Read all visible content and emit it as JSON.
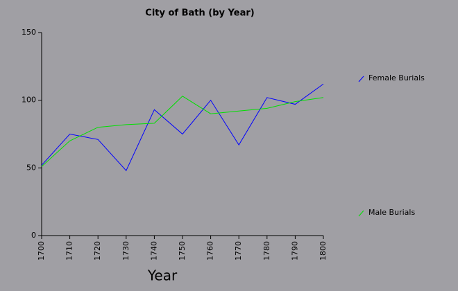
{
  "chart_data": {
    "type": "line",
    "title": "City of Bath (by Year)",
    "x_label": "Year",
    "x": [
      1700,
      1710,
      1720,
      1730,
      1740,
      1750,
      1760,
      1770,
      1780,
      1790,
      1800
    ],
    "xlim": [
      1700,
      1800
    ],
    "xticks": [
      1700,
      1710,
      1720,
      1730,
      1740,
      1750,
      1760,
      1770,
      1780,
      1790,
      1800
    ],
    "ylim": [
      0,
      150
    ],
    "yticks": [
      0,
      50,
      100,
      150
    ],
    "series": [
      {
        "name": "Female Burials",
        "color": "#0000ff",
        "values": [
          52,
          75,
          71,
          48,
          93,
          75,
          100,
          67,
          102,
          97,
          112
        ]
      },
      {
        "name": "Male Burials",
        "color": "#00e000",
        "values": [
          51,
          70,
          80,
          82,
          83,
          103,
          90,
          92,
          94,
          99,
          102
        ]
      }
    ]
  }
}
